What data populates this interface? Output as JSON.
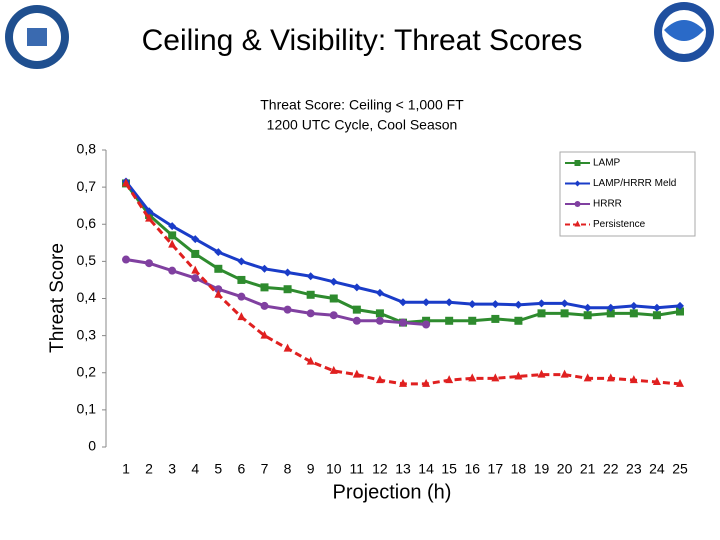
{
  "slide_title": "Ceiling & Visibility: Threat Scores",
  "chart_data": {
    "type": "line",
    "title": "Threat Score: Ceiling < 1,000 FT",
    "subtitle": "1200 UTC Cycle, Cool Season",
    "y_label": "Threat Score",
    "x_label": "Projection (h)",
    "categories": [
      "1",
      "2",
      "3",
      "4",
      "5",
      "6",
      "7",
      "8",
      "9",
      "10",
      "11",
      "12",
      "13",
      "14",
      "15",
      "16",
      "17",
      "18",
      "19",
      "20",
      "21",
      "22",
      "23",
      "24",
      "25"
    ],
    "ylim": [
      0,
      0.8
    ],
    "yticks": [
      0,
      {
        "value": 0.1,
        "label": "0,1"
      },
      {
        "value": 0.2,
        "label": "0,2"
      },
      {
        "value": 0.3,
        "label": "0,3"
      },
      {
        "value": 0.4,
        "label": "0,4"
      },
      {
        "value": 0.5,
        "label": "0,5"
      },
      {
        "value": 0.6,
        "label": "0,6"
      },
      {
        "value": 0.7,
        "label": "0,7"
      },
      {
        "value": 0.8,
        "label": "0,8"
      }
    ],
    "legend": "top-right",
    "series": [
      {
        "name": "LAMP",
        "color": "#2e8b2e",
        "marker": "square",
        "dashed": false,
        "values": [
          0.71,
          0.625,
          0.57,
          0.52,
          0.48,
          0.45,
          0.43,
          0.425,
          0.41,
          0.4,
          0.37,
          0.36,
          0.335,
          0.34,
          0.34,
          0.34,
          0.345,
          0.34,
          0.36,
          0.36,
          0.355,
          0.36,
          0.36,
          0.355,
          0.365
        ]
      },
      {
        "name": "LAMP/HRRR Meld",
        "color": "#1a3cc8",
        "marker": "diamond",
        "dashed": false,
        "values": [
          0.715,
          0.635,
          0.595,
          0.56,
          0.525,
          0.5,
          0.48,
          0.47,
          0.46,
          0.445,
          0.43,
          0.415,
          0.39,
          0.39,
          0.39,
          0.385,
          0.385,
          0.383,
          0.387,
          0.387,
          0.375,
          0.375,
          0.38,
          0.375,
          0.38
        ]
      },
      {
        "name": "HRRR",
        "color": "#8040a0",
        "marker": "circle",
        "dashed": false,
        "values": [
          0.505,
          0.495,
          0.475,
          0.455,
          0.425,
          0.405,
          0.38,
          0.37,
          0.36,
          0.355,
          0.34,
          0.34,
          0.335,
          0.33,
          null,
          null,
          null,
          null,
          null,
          null,
          null,
          null,
          null,
          null,
          null
        ]
      },
      {
        "name": "Persistence",
        "color": "#e02020",
        "marker": "triangle",
        "dashed": true,
        "values": [
          0.71,
          0.615,
          0.545,
          0.475,
          0.41,
          0.35,
          0.3,
          0.265,
          0.23,
          0.205,
          0.195,
          0.18,
          0.17,
          0.17,
          0.18,
          0.185,
          0.185,
          0.19,
          0.195,
          0.195,
          0.185,
          0.185,
          0.18,
          0.175,
          0.17
        ]
      }
    ]
  }
}
